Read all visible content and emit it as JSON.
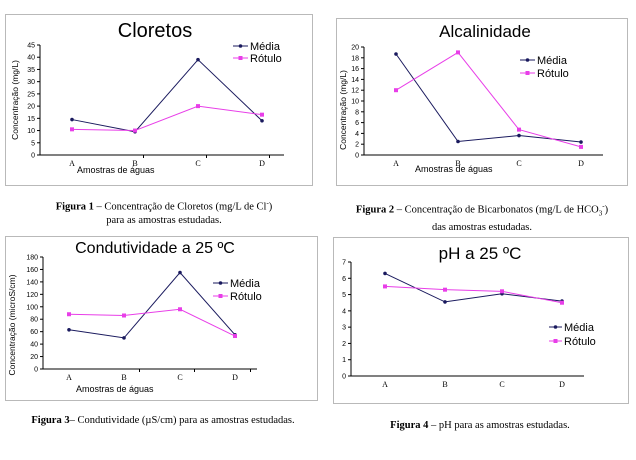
{
  "chart_data": [
    {
      "type": "line",
      "title": "Cloretos",
      "categories": [
        "A",
        "B",
        "C",
        "D"
      ],
      "xlabel": "Amostras de águas",
      "ylabel": "Concentração (mg/L)",
      "ylim": [
        0,
        45
      ],
      "yticks": [
        0,
        5,
        10,
        15,
        20,
        25,
        30,
        35,
        40,
        45
      ],
      "legend": "top-right",
      "series": [
        {
          "name": "Média",
          "color": "#1a1a5e",
          "values": [
            14.5,
            9.5,
            39,
            14
          ]
        },
        {
          "name": "Rótulo",
          "color": "#e83ee8",
          "values": [
            10.5,
            10,
            20,
            16.5
          ]
        }
      ]
    },
    {
      "type": "line",
      "title": "Alcalinidade",
      "categories": [
        "A",
        "B",
        "C",
        "D"
      ],
      "xlabel": "Amostras de águas",
      "ylabel": "Concentração (mg/L)",
      "ylim": [
        0,
        20
      ],
      "yticks": [
        0,
        2,
        4,
        6,
        8,
        10,
        12,
        14,
        16,
        18,
        20
      ],
      "legend": "top-right",
      "series": [
        {
          "name": "Média",
          "color": "#1a1a5e",
          "values": [
            18.7,
            2.5,
            3.6,
            2.4
          ]
        },
        {
          "name": "Rótulo",
          "color": "#e83ee8",
          "values": [
            12,
            19,
            4.7,
            1.5
          ]
        }
      ]
    },
    {
      "type": "line",
      "title": "Condutividade a 25 ºC",
      "categories": [
        "A",
        "B",
        "C",
        "D"
      ],
      "xlabel": "Amostras de águas",
      "ylabel": "Concentração (microS/cm)",
      "ylim": [
        0,
        180
      ],
      "yticks": [
        0,
        20,
        40,
        60,
        80,
        100,
        120,
        140,
        160,
        180
      ],
      "legend": "top-right",
      "series": [
        {
          "name": "Média",
          "color": "#1a1a5e",
          "values": [
            63,
            50,
            155,
            55
          ]
        },
        {
          "name": "Rótulo",
          "color": "#e83ee8",
          "values": [
            88,
            86,
            96,
            53
          ]
        }
      ]
    },
    {
      "type": "line",
      "title": "pH a 25 ºC",
      "categories": [
        "A",
        "B",
        "C",
        "D"
      ],
      "xlabel": "",
      "ylabel": "",
      "ylim": [
        0,
        7
      ],
      "yticks": [
        0,
        1,
        2,
        3,
        4,
        5,
        6,
        7
      ],
      "legend": "bottom-right",
      "series": [
        {
          "name": "Média",
          "color": "#1a1a5e",
          "values": [
            6.3,
            4.55,
            5.05,
            4.6
          ]
        },
        {
          "name": "Rótulo",
          "color": "#e83ee8",
          "values": [
            5.5,
            5.3,
            5.2,
            4.5
          ]
        }
      ]
    }
  ],
  "captions": [
    {
      "label": "Figura 1",
      "line1": " – Concentração de Cloretos (mg/L de Cl",
      "sup": "-",
      "line1_end": ")",
      "line2": "para as amostras estudadas."
    },
    {
      "label": "Figura 2",
      "line1": " – Concentração de Bicarbonatos (mg/L de HCO",
      "sub": "3",
      "sup": "-",
      "line1_end": ")",
      "line2": "das amostras estudadas."
    },
    {
      "label": "Figura 3",
      "line1": "– Condutividade (µS/cm) para as amostras estudadas.",
      "line2": ""
    },
    {
      "label": "Figura 4",
      "line1": " – pH para as amostras estudadas.",
      "line2": ""
    }
  ]
}
